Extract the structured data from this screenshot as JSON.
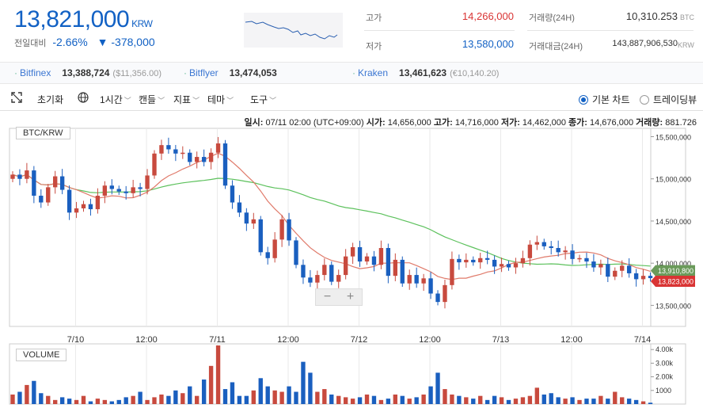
{
  "ticker": {
    "price": "13,821,000",
    "unit": "KRW",
    "change_label": "전일대비",
    "change_pct": "-2.66%",
    "change_abs": "▼ -378,000"
  },
  "stats": {
    "high_label": "고가",
    "high": "14,266,000",
    "low_label": "저가",
    "low": "13,580,000",
    "volume_label": "거래량(24H)",
    "volume": "10,310.253",
    "volume_unit": "BTC",
    "amount_label": "거래대금(24H)",
    "amount": "143,887,906,530",
    "amount_unit": "KRW"
  },
  "exchanges": [
    {
      "name": "Bitfinex",
      "value": "13,388,724",
      "sub": "($11,356.00)"
    },
    {
      "name": "Bitflyer",
      "value": "13,474,053",
      "sub": ""
    },
    {
      "name": "Kraken",
      "value": "13,461,623",
      "sub": "(€10,140.20)"
    }
  ],
  "toolbar": {
    "reset": "초기화",
    "interval": "1시간",
    "candle": "캔들",
    "indicator": "지표",
    "theme": "테마",
    "tools": "도구",
    "basic_chart": "기본 차트",
    "tradingview": "트레이딩뷰"
  },
  "ohlc": {
    "time_label": "일시:",
    "time": "07/11 02:00 (UTC+09:00)",
    "open_label": "시가:",
    "open": "14,656,000",
    "high_label": "고가:",
    "high": "14,716,000",
    "low_label": "저가:",
    "low": "14,462,000",
    "close_label": "종가:",
    "close": "14,676,000",
    "vol_label": "거래량:",
    "vol": "881.726"
  },
  "chart_data": {
    "type": "candlestick",
    "symbol": "BTC/KRW",
    "volume_title": "VOLUME",
    "y_ticks": [
      13500000,
      14000000,
      14500000,
      15000000,
      15500000
    ],
    "y_tick_labels": [
      "13,500,000",
      "14,000,000",
      "14,500,000",
      "15,000,000",
      "15,500,000"
    ],
    "ylim": [
      13250000,
      15580000
    ],
    "x_labels": [
      "7/10",
      "12:00",
      "7/11",
      "12:00",
      "7/12",
      "12:00",
      "7/13",
      "12:00",
      "7/14"
    ],
    "x_label_index": [
      10,
      20,
      30,
      40,
      50,
      60,
      70,
      80,
      90
    ],
    "vol_ticks": [
      1000,
      2000,
      3000,
      4000
    ],
    "vol_tick_labels": [
      "1000",
      "2.00k",
      "3.00k",
      "4.00k"
    ],
    "vol_max": 4300,
    "last_price_tag": "13,823,000",
    "ma_tag": "13,910,800",
    "colors": {
      "up": "#c84a3e",
      "down": "#1a5fbf",
      "ma_short": "#e07a6a",
      "ma_long": "#5cc15c",
      "price_tag": "#d93434",
      "ma_tag": "#6a9a5a"
    },
    "closes": [
      15050000,
      15000000,
      15100000,
      14800000,
      14720000,
      14900000,
      15030000,
      14870000,
      14600000,
      14650000,
      14700000,
      14640000,
      14800000,
      14920000,
      14880000,
      14850000,
      14830000,
      14900000,
      14880000,
      15040000,
      15300000,
      15400000,
      15350000,
      15300000,
      15310000,
      15200000,
      15260000,
      15200000,
      15310000,
      15420000,
      14920000,
      14720000,
      14600000,
      14470000,
      14520000,
      14130000,
      14060000,
      14280000,
      14520000,
      14270000,
      13980000,
      13830000,
      13770000,
      13860000,
      13980000,
      13780000,
      13860000,
      14080000,
      14190000,
      14020000,
      14080000,
      13980000,
      14180000,
      13850000,
      14040000,
      13760000,
      13860000,
      13760000,
      13820000,
      13640000,
      13540000,
      13740000,
      14050000,
      14010000,
      14040000,
      14010000,
      14060000,
      14040000,
      13960000,
      13990000,
      13950000,
      14000000,
      14060000,
      14220000,
      14250000,
      14200000,
      14180000,
      14130000,
      14150000,
      14050000,
      14060000,
      14020000,
      13950000,
      13990000,
      13840000,
      13910000,
      13970000,
      13880000,
      13810000,
      13850000,
      13823000
    ],
    "volumes": [
      700,
      900,
      1400,
      1700,
      800,
      600,
      300,
      500,
      400,
      300,
      600,
      200,
      400,
      300,
      200,
      300,
      500,
      600,
      900,
      300,
      500,
      700,
      600,
      1000,
      800,
      1300,
      600,
      1800,
      2800,
      4300,
      1100,
      1600,
      600,
      600,
      1000,
      1900,
      1300,
      1000,
      900,
      1300,
      900,
      3100,
      2300,
      900,
      1100,
      700,
      600,
      500,
      400,
      500,
      700,
      600,
      300,
      400,
      700,
      600,
      400,
      500,
      700,
      1300,
      2300,
      1100,
      700,
      600,
      500,
      400,
      600,
      300,
      600,
      500,
      300,
      400,
      500,
      600,
      1200,
      700,
      800,
      500,
      400,
      500,
      300,
      400,
      400,
      600,
      400,
      900,
      500,
      400,
      300,
      200,
      100
    ]
  }
}
